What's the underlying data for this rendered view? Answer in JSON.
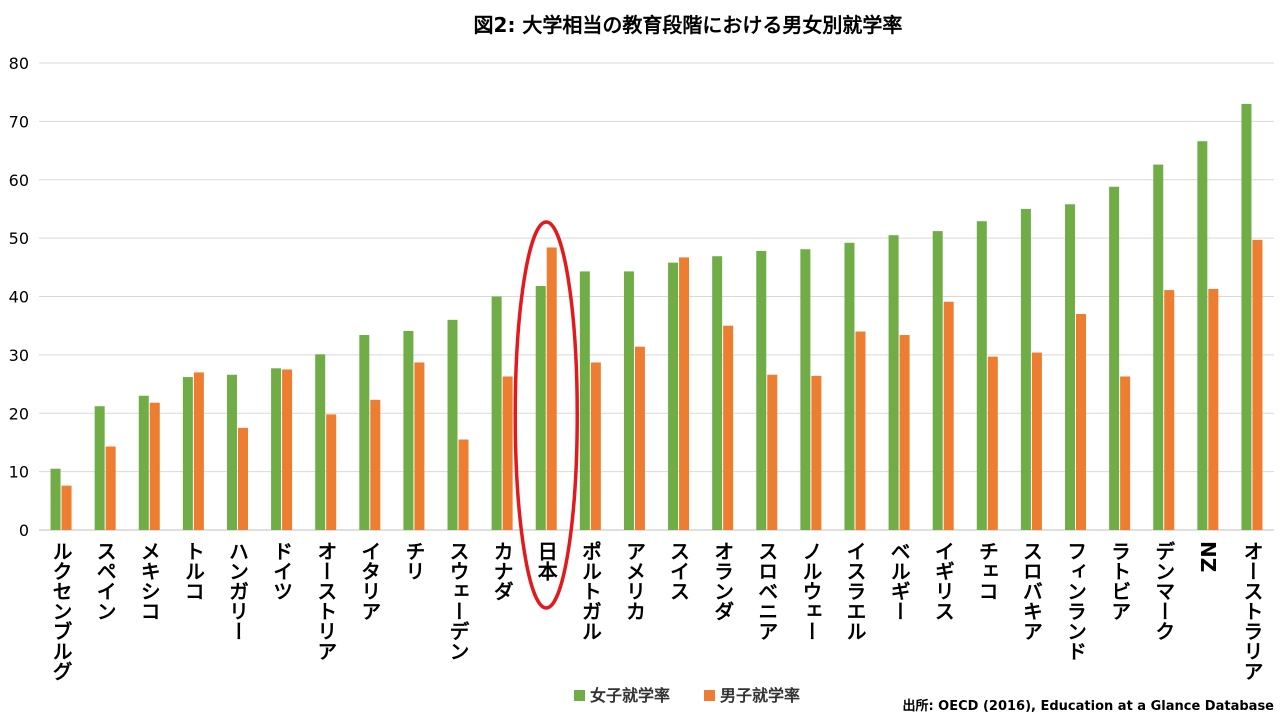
{
  "chart_data": {
    "type": "bar",
    "title": "図2: 大学相当の教育段階における男女別就学率",
    "xlabel": "",
    "ylabel": "",
    "ylim": [
      0,
      80
    ],
    "yticks": [
      0,
      10,
      20,
      30,
      40,
      50,
      60,
      70,
      80
    ],
    "grid": true,
    "legend_position": "bottom",
    "categories": [
      "ルクセンブルグ",
      "スペイン",
      "メキシコ",
      "トルコ",
      "ハンガリー",
      "ドイツ",
      "オーストリア",
      "イタリア",
      "チリ",
      "スウェーデン",
      "カナダ",
      "日本",
      "ポルトガル",
      "アメリカ",
      "スイス",
      "オランダ",
      "スロベニア",
      "ノルウェー",
      "イスラエル",
      "ベルギー",
      "イギリス",
      "チェコ",
      "スロバキア",
      "フィンランド",
      "ラトビア",
      "デンマーク",
      "NZ",
      "オーストラリア"
    ],
    "series": [
      {
        "name": "女子就学率",
        "color": "#70ad47",
        "values": [
          10.5,
          21.2,
          23.0,
          26.2,
          26.6,
          27.7,
          30.1,
          33.4,
          34.1,
          36.0,
          40.0,
          41.8,
          44.3,
          44.3,
          45.8,
          46.9,
          47.8,
          48.1,
          49.2,
          50.5,
          51.2,
          52.9,
          55.0,
          55.8,
          58.8,
          62.6,
          66.6,
          73.0
        ]
      },
      {
        "name": "男子就学率",
        "color": "#ed7d31",
        "values": [
          7.6,
          14.3,
          21.8,
          27.0,
          17.5,
          27.5,
          19.8,
          22.3,
          28.7,
          15.5,
          26.3,
          48.4,
          28.7,
          31.4,
          46.7,
          35.0,
          26.6,
          26.4,
          34.0,
          33.4,
          39.1,
          29.7,
          30.4,
          37.0,
          26.3,
          41.1,
          41.3,
          49.7
        ]
      }
    ],
    "highlight": {
      "category": "日本",
      "shape": "ellipse",
      "color": "#e31a1c"
    },
    "source": "出所: OECD (2016), Education at a Glance Database"
  }
}
